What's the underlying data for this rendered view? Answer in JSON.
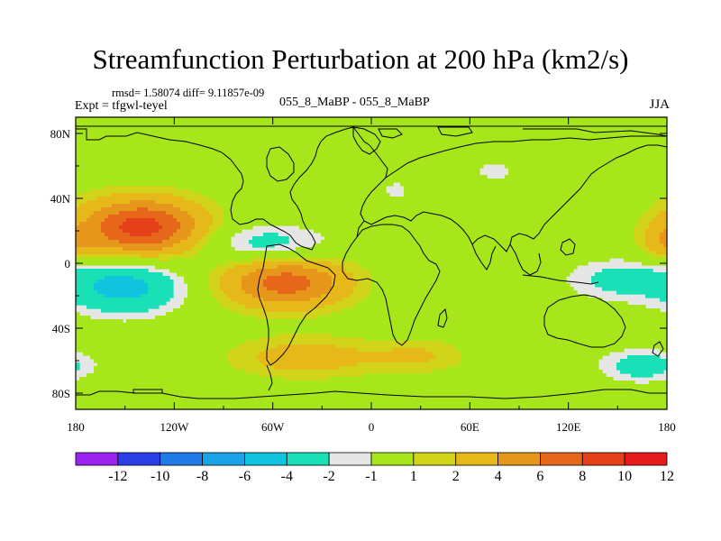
{
  "title": "Streamfunction Perturbation at 200 hPa (km2/s)",
  "stats_line": "rmsd= 1.58074 diff= 9.11857e-09",
  "experiment_label": "Expt = tfgwl-teyel",
  "difference_label": "055_8_MaBP - 055_8_MaBP",
  "season_label": "JJA",
  "axes": {
    "x_ticks": [
      "180",
      "120W",
      "60W",
      "0",
      "60E",
      "120E",
      "180"
    ],
    "y_ticks": [
      "80N",
      "40N",
      "0",
      "40S",
      "80S"
    ]
  },
  "colorbar": {
    "colors": [
      "#9a23f0",
      "#2b3ee6",
      "#1f7ae6",
      "#1aa3e6",
      "#10c4e0",
      "#19e0b6",
      "#e6e6e6",
      "#a6e61a",
      "#d2d41a",
      "#e6b81a",
      "#e6961a",
      "#e6661a",
      "#e6401a",
      "#e6191a"
    ],
    "labels": [
      "-12",
      "-10",
      "-8",
      "-6",
      "-4",
      "-2",
      "-1",
      "1",
      "2",
      "4",
      "6",
      "8",
      "10",
      "12"
    ]
  },
  "chart_data": {
    "type": "heatmap",
    "title": "Streamfunction Perturbation at 200 hPa (km2/s)",
    "variable": "Streamfunction Perturbation",
    "level": "200 hPa",
    "units": "km2/s",
    "season": "JJA",
    "x_range": [
      -180,
      180
    ],
    "y_range": [
      -90,
      90
    ],
    "contour_levels": [
      -12,
      -10,
      -8,
      -6,
      -4,
      -2,
      -1,
      1,
      2,
      4,
      6,
      8,
      10,
      12
    ],
    "features": [
      {
        "lon": -140,
        "lat": 22,
        "lon_radius": 38,
        "lat_radius": 18,
        "peak": 9
      },
      {
        "lon": -150,
        "lat": -14,
        "lon_radius": 35,
        "lat_radius": 17,
        "peak": -5
      },
      {
        "lon": -52,
        "lat": -12,
        "lon_radius": 38,
        "lat_radius": 16,
        "peak": 7
      },
      {
        "lon": -65,
        "lat": 12,
        "lon_radius": 40,
        "lat_radius": 12,
        "peak": -3
      },
      {
        "lon": -40,
        "lat": -58,
        "lon_radius": 46,
        "lat_radius": 13,
        "peak": 3
      },
      {
        "lon": 30,
        "lat": -57,
        "lon_radius": 30,
        "lat_radius": 11,
        "peak": 2
      },
      {
        "lon": 75,
        "lat": 57,
        "lon_radius": 15,
        "lat_radius": 7,
        "peak": -1.5
      },
      {
        "lon": 15,
        "lat": 45,
        "lon_radius": 9,
        "lat_radius": 7,
        "peak": -1.5
      },
      {
        "lon": 150,
        "lat": -10,
        "lon_radius": 32,
        "lat_radius": 13,
        "peak": -2.5
      },
      {
        "lon": 165,
        "lat": -63,
        "lon_radius": 26,
        "lat_radius": 10,
        "peak": -3
      },
      {
        "lon": 178,
        "lat": 12,
        "lon_radius": 14,
        "lat_radius": 11,
        "peak": 2.5
      }
    ]
  }
}
